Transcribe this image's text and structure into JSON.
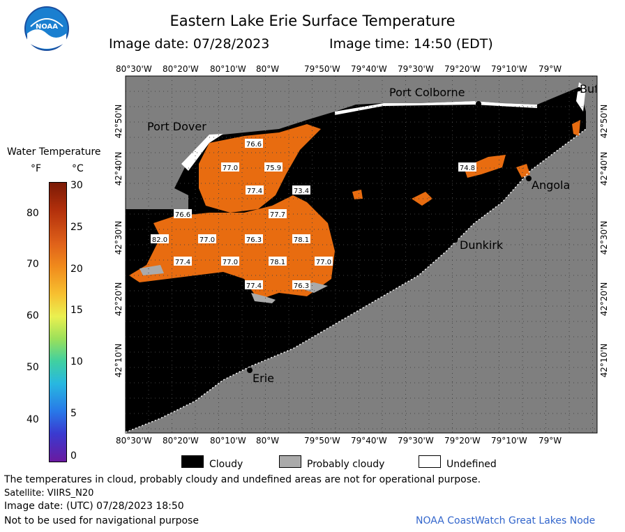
{
  "header": {
    "title": "Eastern Lake Erie Surface Temperature",
    "date_label": "Image date: 07/28/2023",
    "time_label": "Image time: 14:50 (EDT)",
    "logo_text": "NOAA"
  },
  "colorbar": {
    "title": "Water Temperature",
    "unit_f": "°F",
    "unit_c": "°C",
    "f_ticks": [
      "80",
      "70",
      "60",
      "50",
      "40"
    ],
    "c_ticks": [
      "30",
      "25",
      "20",
      "15",
      "10",
      "5",
      "0"
    ]
  },
  "axes": {
    "lon_labels": [
      "80°30'W",
      "80°20'W",
      "80°10'W",
      "80°W",
      "79°50'W",
      "79°40'W",
      "79°30'W",
      "79°20'W",
      "79°10'W",
      "79°W"
    ],
    "lat_labels": [
      "42°50'N",
      "42°40'N",
      "42°30'N",
      "42°20'N",
      "42°10'N"
    ]
  },
  "places": [
    "Port Colborne",
    "Port Dover",
    "Angola",
    "Dunkirk",
    "Erie",
    "Buf"
  ],
  "temps": [
    "76.6",
    "77.0",
    "75.9",
    "77.4",
    "73.4",
    "76.6",
    "77.7",
    "82.0",
    "77.0",
    "76.3",
    "78.1",
    "77.4",
    "77.0",
    "78.1",
    "77.0",
    "77.4",
    "76.3",
    "74.8"
  ],
  "legend": {
    "cloudy": "Cloudy",
    "probably_cloudy": "Probably cloudy",
    "undefined": "Undefined"
  },
  "footer": {
    "disclaimer": "The temperatures in cloud, probably cloudy and undefined areas are not for operational purpose.",
    "satellite": "Satellite: VIIRS_N20",
    "utc_date": "Image date: (UTC) 07/28/2023   18:50",
    "nav_note": "Not to be used for navigational purpose",
    "credit": "NOAA CoastWatch Great Lakes Node"
  },
  "colors": {
    "land": "#7f7f7f",
    "water_cloud": "#000000",
    "warm": "#e86c10",
    "credit": "#3366cc"
  }
}
